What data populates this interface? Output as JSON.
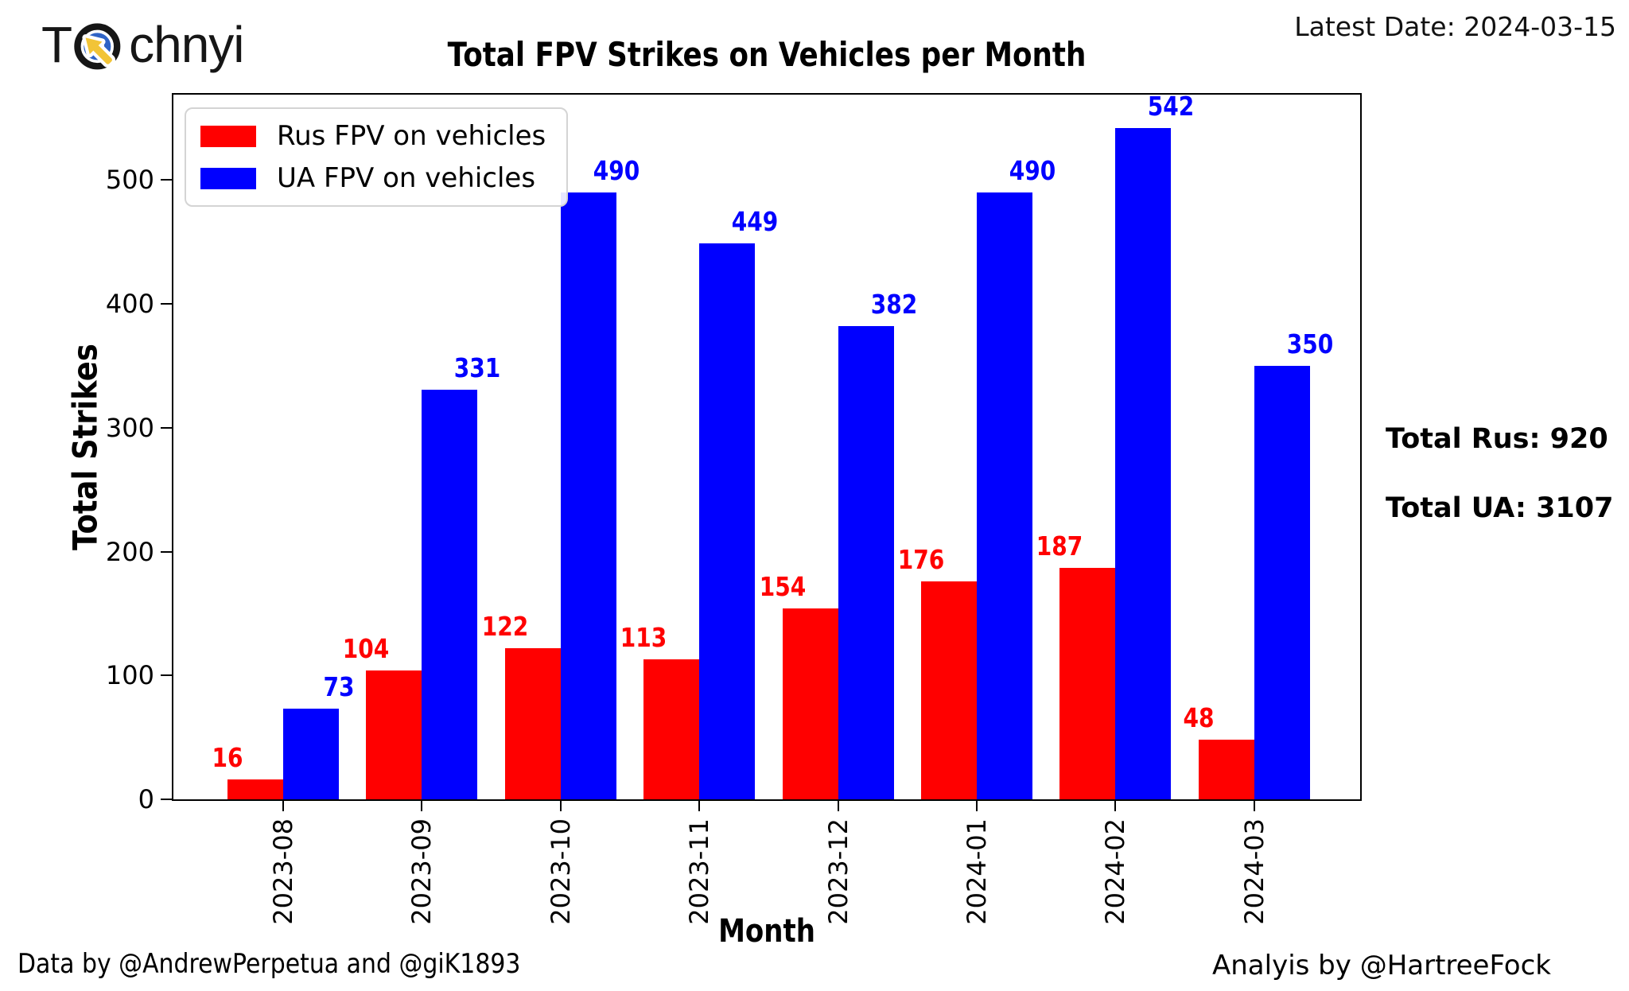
{
  "header": {
    "logo_prefix": "T",
    "logo_suffix": "chnyi",
    "latest_date_label": "Latest Date: 2024-03-15"
  },
  "chart_data": {
    "type": "bar",
    "title": "Total FPV Strikes on Vehicles per Month",
    "xlabel": "Month",
    "ylabel": "Total Strikes",
    "categories": [
      "2023-08",
      "2023-09",
      "2023-10",
      "2023-11",
      "2023-12",
      "2024-01",
      "2024-02",
      "2024-03"
    ],
    "series": [
      {
        "name": "Rus FPV on vehicles",
        "color": "#ff0000",
        "values": [
          16,
          104,
          122,
          113,
          154,
          176,
          187,
          48
        ]
      },
      {
        "name": "UA FPV on vehicles",
        "color": "#0000ff",
        "values": [
          73,
          331,
          490,
          449,
          382,
          490,
          542,
          350
        ]
      }
    ],
    "ylim": [
      0,
      569
    ],
    "yticks": [
      0,
      100,
      200,
      300,
      400,
      500
    ],
    "legend_position": "upper left",
    "grid": false,
    "bar_value_labels": true
  },
  "side_totals": {
    "total_rus": "Total Rus: 920",
    "total_ua": "Total UA: 3107"
  },
  "footer": {
    "credit_left": "Data by @AndrewPerpetua and @giK1893",
    "credit_right": "Analyis by @HartreeFock"
  },
  "icon_colors": {
    "ring_outer": "#161616",
    "ring_inner": "#2f63c5",
    "cursor": "#f2c437"
  }
}
